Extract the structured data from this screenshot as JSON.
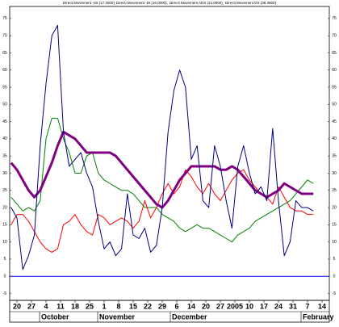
{
  "chart_data": {
    "type": "line",
    "series": [
      {
        "name": "Directi Movement +DI (17.3000)",
        "color": "#008000",
        "width": 1,
        "values": [
          23,
          21,
          19,
          20,
          19,
          22,
          40,
          46,
          46,
          40,
          36,
          30,
          30,
          35,
          36,
          30,
          28,
          27,
          26,
          25,
          25,
          24,
          22,
          20,
          20,
          20,
          18,
          17,
          16,
          14,
          13,
          14,
          15,
          14,
          14,
          13,
          12,
          11,
          10,
          12,
          13,
          14,
          16,
          17,
          18,
          19,
          20,
          21,
          22,
          24,
          26,
          28,
          27
        ]
      },
      {
        "name": "Directi Movement -DI (16.0000),",
        "color": "#ff0000",
        "width": 1,
        "values": [
          15,
          18,
          18,
          16,
          13,
          10,
          8,
          7,
          8,
          15,
          16,
          18,
          15,
          13,
          12,
          18,
          17,
          15,
          16,
          17,
          16,
          14,
          16,
          22,
          17,
          20,
          24,
          27,
          24,
          26,
          31,
          29,
          26,
          24,
          27,
          24,
          22,
          25,
          28,
          30,
          31,
          28,
          26,
          24,
          23,
          21,
          26,
          23,
          20,
          19,
          19,
          18,
          18
        ]
      },
      {
        "name": "Directi Movement ADX (24.0000),",
        "color": "#800080",
        "width": 3,
        "values": [
          33,
          31,
          28,
          25,
          23,
          25,
          29,
          33,
          38,
          42,
          41,
          40,
          38,
          36,
          36,
          36,
          36,
          36,
          35,
          33,
          31,
          29,
          27,
          25,
          23,
          21,
          20,
          22,
          25,
          28,
          30,
          32,
          32,
          32,
          32,
          32,
          31,
          31,
          32,
          31,
          29,
          27,
          25,
          24,
          23,
          24,
          25,
          27,
          26,
          25,
          24,
          24,
          24
        ]
      },
      {
        "name": "Directi Movement DX (38.3900)",
        "color": "#000080",
        "width": 1,
        "values": [
          20,
          17,
          2,
          6,
          12,
          38,
          56,
          70,
          73,
          42,
          32,
          34,
          36,
          30,
          26,
          16,
          8,
          10,
          6,
          8,
          24,
          12,
          11,
          14,
          7,
          9,
          20,
          42,
          54,
          60,
          55,
          34,
          38,
          22,
          20,
          38,
          32,
          22,
          14,
          32,
          38,
          30,
          24,
          26,
          22,
          43,
          22,
          6,
          10,
          22,
          20,
          20,
          19
        ]
      }
    ],
    "x": [
      0,
      2,
      4,
      6,
      8,
      10,
      12,
      14,
      16,
      18,
      20,
      22,
      24,
      26,
      28,
      30,
      32,
      34,
      36,
      38,
      40,
      42,
      44,
      46,
      48,
      50,
      52,
      54,
      56,
      58,
      60,
      62,
      64,
      66,
      68,
      70,
      72,
      74,
      76,
      78,
      80,
      82,
      84,
      86,
      88,
      90,
      92,
      94,
      96,
      98,
      100,
      102,
      104
    ],
    "xlim": [
      -0.5,
      109.5
    ],
    "xticks": [
      {
        "value": 2,
        "label": "20"
      },
      {
        "value": 7,
        "label": "27"
      },
      {
        "value": 12,
        "label": "4",
        "month": "October"
      },
      {
        "value": 17,
        "label": "11"
      },
      {
        "value": 22,
        "label": "18"
      },
      {
        "value": 27,
        "label": "25"
      },
      {
        "value": 32,
        "label": "1",
        "month": "November"
      },
      {
        "value": 37,
        "label": "8"
      },
      {
        "value": 42,
        "label": "15"
      },
      {
        "value": 47,
        "label": "22"
      },
      {
        "value": 52,
        "label": "29"
      },
      {
        "value": 57,
        "label": "6",
        "month": "December"
      },
      {
        "value": 62,
        "label": "14"
      },
      {
        "value": 67,
        "label": "20"
      },
      {
        "value": 72,
        "label": "27"
      },
      {
        "value": 77,
        "label": "2005"
      },
      {
        "value": 82,
        "label": "10"
      },
      {
        "value": 87,
        "label": "17"
      },
      {
        "value": 92,
        "label": "24"
      },
      {
        "value": 97,
        "label": "31"
      },
      {
        "value": 102,
        "label": "7",
        "month": "February"
      },
      {
        "value": 107,
        "label": "14"
      }
    ],
    "ylim": [
      -7,
      78.5
    ],
    "yticks": [
      -5,
      0,
      5,
      10,
      15,
      20,
      25,
      30,
      35,
      40,
      45,
      50,
      55,
      60,
      65,
      70,
      75
    ],
    "reference_line": {
      "value": 0,
      "color": "#0000ff"
    }
  }
}
